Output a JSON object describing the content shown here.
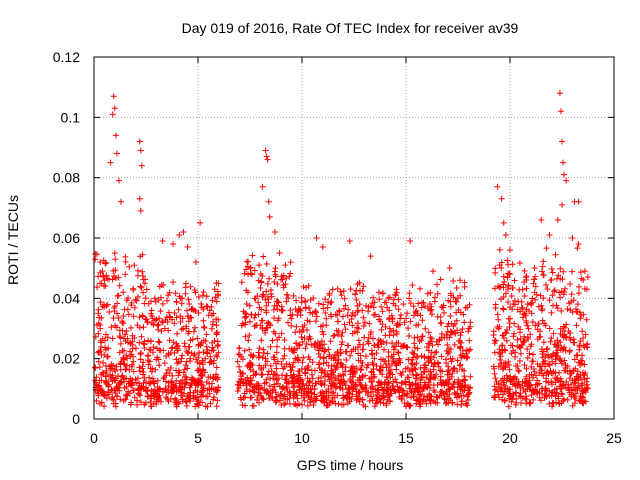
{
  "chart_data": {
    "type": "scatter",
    "title": "Day 019 of 2016, Rate Of TEC Index for receiver av39",
    "xlabel": "GPS time / hours",
    "ylabel": "ROTI / TECUs",
    "xlim": [
      0,
      25
    ],
    "ylim": [
      0,
      0.12
    ],
    "x_ticks": [
      0,
      5,
      10,
      15,
      20,
      25
    ],
    "x_tick_labels": [
      "0",
      "5",
      "10",
      "15",
      "20",
      "25"
    ],
    "y_ticks": [
      0,
      0.02,
      0.04,
      0.06,
      0.08,
      0.1,
      0.12
    ],
    "y_tick_labels": [
      "0",
      "0.02",
      "0.04",
      "0.06",
      "0.08",
      "0.1",
      "0.12"
    ],
    "grid": true,
    "marker": "plus",
    "series_color": "#ff0000",
    "data_gaps_hours": [
      [
        6.0,
        6.9
      ],
      [
        18.1,
        19.2
      ],
      [
        23.8,
        25.0
      ]
    ],
    "series": [
      {
        "name": "ROTI",
        "points": [
          [
            0.1,
            0.012
          ],
          [
            0.2,
            0.035
          ],
          [
            0.3,
            0.052
          ],
          [
            0.5,
            0.046
          ],
          [
            0.8,
            0.085
          ],
          [
            0.9,
            0.101
          ],
          [
            0.95,
            0.107
          ],
          [
            1.0,
            0.103
          ],
          [
            1.05,
            0.094
          ],
          [
            1.1,
            0.088
          ],
          [
            1.2,
            0.079
          ],
          [
            1.3,
            0.072
          ],
          [
            1.0,
            0.055
          ],
          [
            1.5,
            0.048
          ],
          [
            2.2,
            0.092
          ],
          [
            2.25,
            0.089
          ],
          [
            2.3,
            0.084
          ],
          [
            2.2,
            0.073
          ],
          [
            2.25,
            0.069
          ],
          [
            3.3,
            0.059
          ],
          [
            3.8,
            0.058
          ],
          [
            4.1,
            0.061
          ],
          [
            4.3,
            0.062
          ],
          [
            4.5,
            0.057
          ],
          [
            4.9,
            0.052
          ],
          [
            5.1,
            0.065
          ],
          [
            5.8,
            0.043
          ],
          [
            7.1,
            0.031
          ],
          [
            7.4,
            0.042
          ],
          [
            8.1,
            0.077
          ],
          [
            8.25,
            0.089
          ],
          [
            8.3,
            0.087
          ],
          [
            8.35,
            0.086
          ],
          [
            8.4,
            0.072
          ],
          [
            8.45,
            0.067
          ],
          [
            8.7,
            0.062
          ],
          [
            9.2,
            0.051
          ],
          [
            10.7,
            0.06
          ],
          [
            11.0,
            0.057
          ],
          [
            12.3,
            0.059
          ],
          [
            13.3,
            0.054
          ],
          [
            13.7,
            0.042
          ],
          [
            14.5,
            0.041
          ],
          [
            15.2,
            0.059
          ],
          [
            16.3,
            0.049
          ],
          [
            17.1,
            0.05
          ],
          [
            17.6,
            0.046
          ],
          [
            19.4,
            0.077
          ],
          [
            19.6,
            0.073
          ],
          [
            19.7,
            0.065
          ],
          [
            19.8,
            0.061
          ],
          [
            20.0,
            0.056
          ],
          [
            21.5,
            0.066
          ],
          [
            21.9,
            0.061
          ],
          [
            22.3,
            0.066
          ],
          [
            22.4,
            0.108
          ],
          [
            22.45,
            0.102
          ],
          [
            22.5,
            0.092
          ],
          [
            22.55,
            0.085
          ],
          [
            22.6,
            0.081
          ],
          [
            22.7,
            0.079
          ],
          [
            22.5,
            0.071
          ],
          [
            23.1,
            0.072
          ],
          [
            23.3,
            0.072
          ],
          [
            23.0,
            0.06
          ],
          [
            23.3,
            0.058
          ],
          [
            23.6,
            0.049
          ],
          [
            23.7,
            0.043
          ]
        ]
      }
    ]
  }
}
